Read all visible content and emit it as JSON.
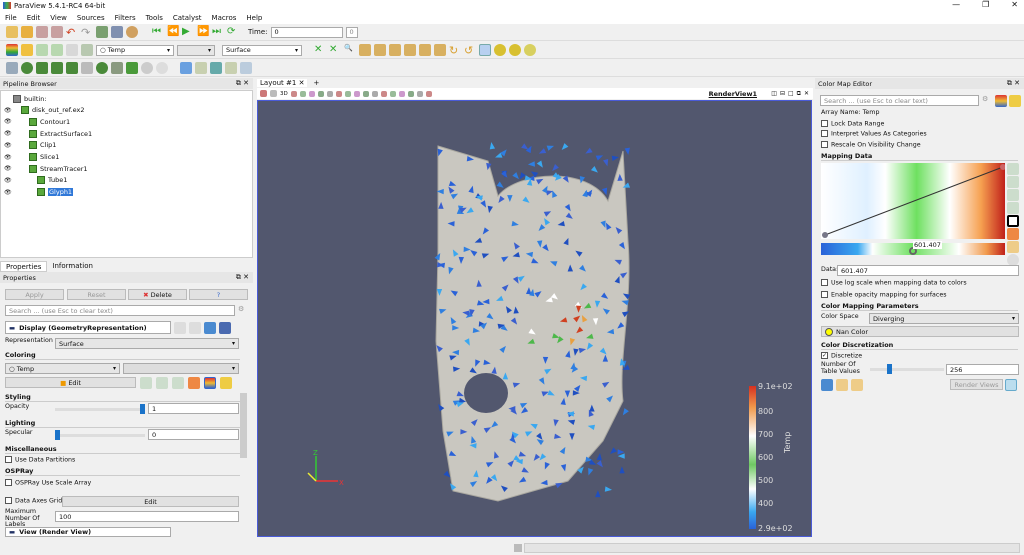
{
  "window": {
    "title": "ParaView 5.4.1-RC4 64-bit",
    "controls": [
      "—",
      "❐",
      "✕"
    ]
  },
  "menu": [
    "File",
    "Edit",
    "View",
    "Sources",
    "Filters",
    "Tools",
    "Catalyst",
    "Macros",
    "Help"
  ],
  "toolbar": {
    "time_label": "Time:",
    "time_value": "0",
    "time_index": "0",
    "color_array": "Temp",
    "component": "",
    "representation": "Surface"
  },
  "pipeline": {
    "title": "Pipeline Browser",
    "items": [
      {
        "label": "builtin:",
        "level": 0,
        "visible": false
      },
      {
        "label": "disk_out_ref.ex2",
        "level": 1,
        "visible": true
      },
      {
        "label": "Contour1",
        "level": 2,
        "visible": true
      },
      {
        "label": "ExtractSurface1",
        "level": 2,
        "visible": true
      },
      {
        "label": "Clip1",
        "level": 2,
        "visible": true
      },
      {
        "label": "Slice1",
        "level": 2,
        "visible": true
      },
      {
        "label": "StreamTracer1",
        "level": 2,
        "visible": true
      },
      {
        "label": "Tube1",
        "level": 3,
        "visible": true
      },
      {
        "label": "Glyph1",
        "level": 3,
        "visible": true,
        "selected": true
      }
    ]
  },
  "properties": {
    "tabs": [
      "Properties",
      "Information"
    ],
    "title": "Properties",
    "apply": "Apply",
    "reset": "Reset",
    "delete": "Delete",
    "help": "?",
    "search_placeholder": "Search ... (use Esc to clear text)",
    "display_section": "Display (GeometryRepresentation)",
    "representation_label": "Representation",
    "representation_value": "Surface",
    "coloring": "Coloring",
    "coloring_value": "Temp",
    "edit": "Edit",
    "styling": "Styling",
    "opacity_label": "Opacity",
    "opacity_value": "1",
    "opacity_fraction": 1,
    "lighting": "Lighting",
    "specular_label": "Specular",
    "specular_value": "0",
    "specular_fraction": 0,
    "misc": "Miscellaneous",
    "use_partitions": "Use Data Partitions",
    "ospray": "OSPRay",
    "ospray_scale": "OSPRay Use Scale Array",
    "axes_grid": "Data Axes Grid",
    "axes_edit": "Edit",
    "max_labels_label": "Maximum Number Of Labels",
    "max_labels_value": "100",
    "view_section": "View (Render View)"
  },
  "layout": {
    "tab": "Layout #1",
    "add": "+",
    "view_label": "RenderView1",
    "mode_3d": "3D"
  },
  "legend": {
    "title": "Temp",
    "ticks": [
      "9.1e+02",
      "800",
      "700",
      "600",
      "500",
      "400",
      "2.9e+02"
    ]
  },
  "colormap": {
    "title": "Color Map Editor",
    "search_placeholder": "Search ... (use Esc to clear text)",
    "array_name": "Array Name: Temp",
    "lock": "Lock Data Range",
    "categories": "Interpret Values As Categories",
    "rescale": "Rescale On Visibility Change",
    "mapping": "Mapping Data",
    "point_value": "601.407",
    "data_label": "Data:",
    "data_value": "601.407",
    "log": "Use log scale when mapping data to colors",
    "opacity": "Enable opacity mapping for surfaces",
    "params": "Color Mapping Parameters",
    "space_label": "Color Space",
    "space_value": "Diverging",
    "nan": "Nan Color",
    "nan_color": "#ffff00",
    "discretization": "Color Discretization",
    "discretize": "Discretize",
    "discretize_checked": true,
    "table_label": "Number Of Table Values",
    "table_value": "256",
    "render_views": "Render Views"
  }
}
